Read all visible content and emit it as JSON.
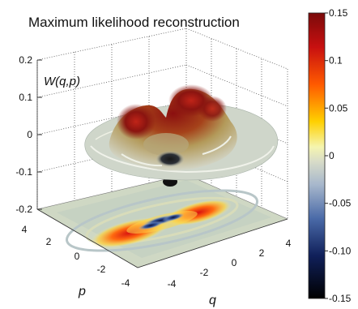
{
  "chart_data": {
    "type": "surface",
    "title": "Maximum likelihood reconstruction",
    "zlabel": "W(q,p)",
    "xlabel": "q",
    "ylabel": "p",
    "zlim": [
      -0.2,
      0.2
    ],
    "z_ticks": [
      "-0.2",
      "-0.1",
      "0",
      "0.1",
      "0.2"
    ],
    "q_ticks": [
      "-4",
      "-2",
      "0",
      "2",
      "4"
    ],
    "p_ticks": [
      "-4",
      "-2",
      "0",
      "2",
      "4"
    ],
    "colorbar": {
      "range": [
        -0.15,
        0.15
      ],
      "ticks": [
        "0.15",
        "0.1",
        "0.05",
        "0",
        "-0.05",
        "-0.10",
        "-0.15"
      ]
    },
    "grid": true,
    "projection": "contour map on p-q plane below surface"
  }
}
